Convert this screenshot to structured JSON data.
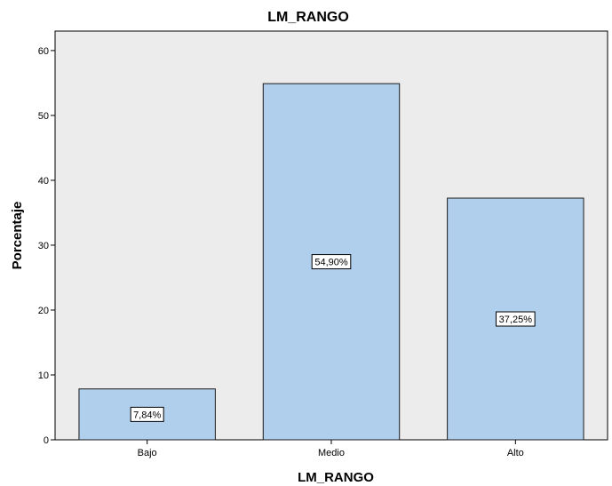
{
  "chart_data": {
    "type": "bar",
    "title": "LM_RANGO",
    "xlabel": "LM_RANGO",
    "ylabel": "Porcentaje",
    "categories": [
      "Bajo",
      "Medio",
      "Alto"
    ],
    "values": [
      7.84,
      54.9,
      37.25
    ],
    "data_labels": [
      "7,84%",
      "54,90%",
      "37,25%"
    ],
    "ylim": [
      0,
      63
    ],
    "yticks": [
      0,
      10,
      20,
      30,
      40,
      50,
      60
    ],
    "grid": false,
    "legend": "none",
    "colors": {
      "plot_background": "#ececec",
      "bar_fill": "#afcfed",
      "bar_stroke": "#1a1a1a",
      "label_box_fill": "#ffffff"
    }
  }
}
